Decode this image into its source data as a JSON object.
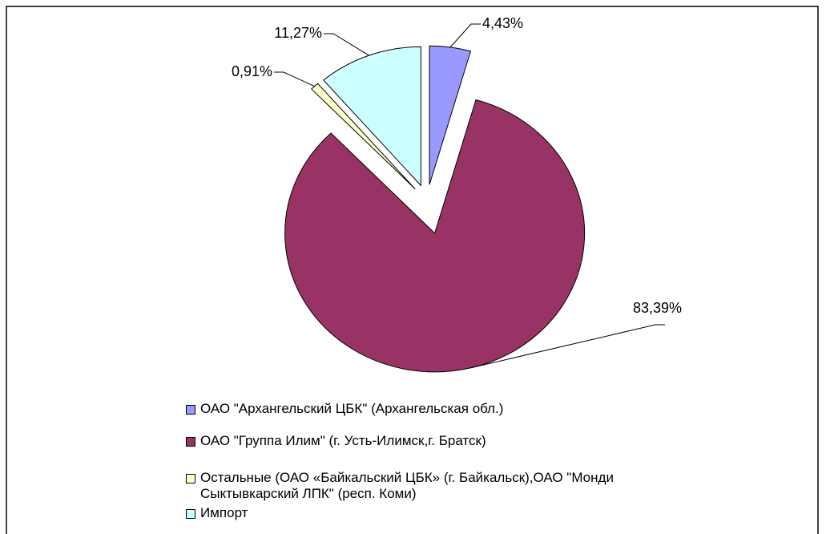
{
  "chart_data": {
    "type": "pie",
    "categories": [
      "ОАО \"Архангельский ЦБК\" (Архангельская обл.)",
      "ОАО \"Группа Илим\" (г. Усть-Илимск,г. Братск)",
      "Остальные (ОАО «Байкальский ЦБК» (г. Байкальск),ОАО \"Монди Сыктывкарский ЛПК\" (респ. Коми)",
      "Импорт"
    ],
    "values": [
      4.43,
      83.39,
      0.91,
      11.27
    ],
    "value_labels": [
      "4,43%",
      "83,39%",
      "0,91%",
      "11,27%"
    ],
    "colors": [
      "#9999ff",
      "#993366",
      "#ffffcc",
      "#ccffff"
    ],
    "legend": "bottom"
  }
}
